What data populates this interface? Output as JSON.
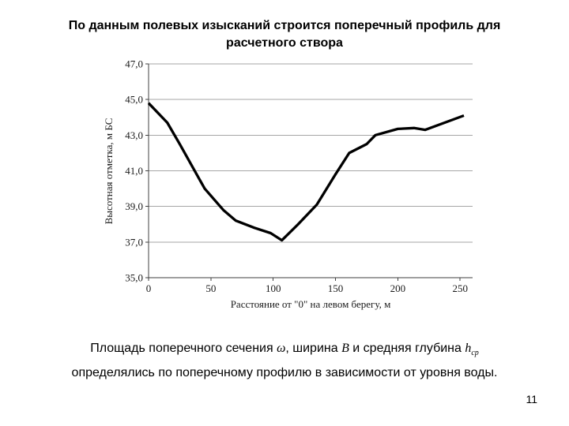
{
  "slide": {
    "title": "По данным полевых изысканий строится поперечный профиль для расчетного створа",
    "page_number": "11",
    "body": {
      "line1_part1": "Площадь поперечного сечения ",
      "omega": "ω",
      "line1_part2": ", ширина ",
      "width_symbol": "В",
      "line1_part3": " и средняя глубина ",
      "depth_symbol": "h",
      "depth_subscript": "ср",
      "line2": "определялись по поперечному профилю в зависимости от уровня воды."
    }
  },
  "chart_data": {
    "type": "line",
    "title": "",
    "xlabel": "Расстояние от \"0\" на левом берегу, м",
    "ylabel": "Высотная отметка, м БС",
    "x": [
      0,
      15,
      25,
      45,
      60,
      70,
      85,
      98,
      107,
      120,
      135,
      150,
      161,
      175,
      182,
      200,
      213,
      222,
      253
    ],
    "y": [
      44.8,
      43.7,
      42.5,
      40.0,
      38.8,
      38.2,
      37.8,
      37.5,
      37.1,
      38.0,
      39.1,
      40.8,
      42.0,
      42.5,
      43.0,
      43.35,
      43.4,
      43.3,
      44.1
    ],
    "xlim": [
      0,
      260
    ],
    "ylim": [
      35,
      47
    ],
    "xticks": [
      0,
      50,
      100,
      150,
      200,
      250
    ],
    "yticks": [
      35,
      37,
      39,
      41,
      43,
      45,
      47
    ],
    "ytick_labels": [
      "35,0",
      "37,0",
      "39,0",
      "41,0",
      "43,0",
      "45,0",
      "47,0"
    ],
    "grid": true,
    "legend": false,
    "line_color": "#000000",
    "grid_color": "#a6a6a6",
    "axis_color": "#404040"
  }
}
